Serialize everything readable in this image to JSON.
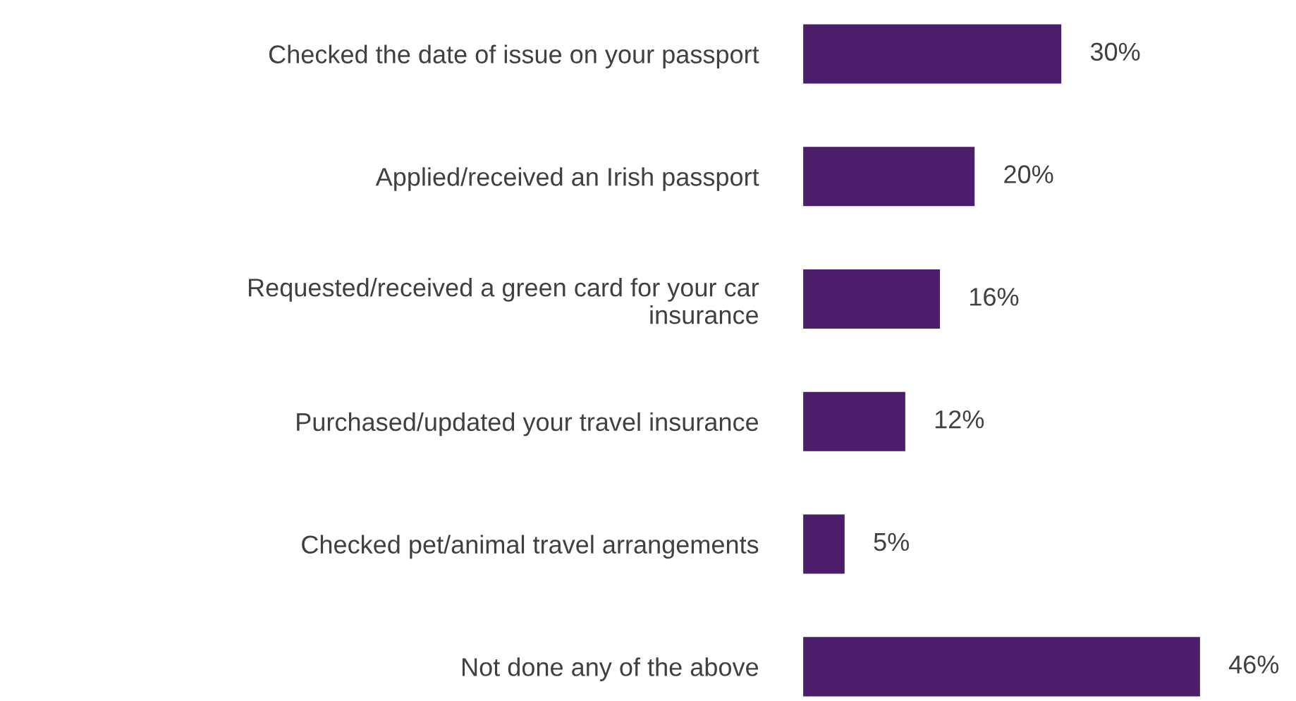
{
  "chart_data": {
    "type": "bar",
    "orientation": "horizontal",
    "categories": [
      "Checked the date of issue on your passport",
      "Applied/received an Irish passport",
      "Requested/received a green card for your car\ninsurance",
      "Purchased/updated your travel insurance",
      "Checked pet/animal travel arrangements",
      "Not done any of the above"
    ],
    "values": [
      30,
      20,
      16,
      12,
      5,
      46
    ],
    "value_labels": [
      "30%",
      "20%",
      "16%",
      "12%",
      "5%",
      "46%"
    ],
    "color": "#4b1d6a",
    "grid": false,
    "legend": false
  }
}
